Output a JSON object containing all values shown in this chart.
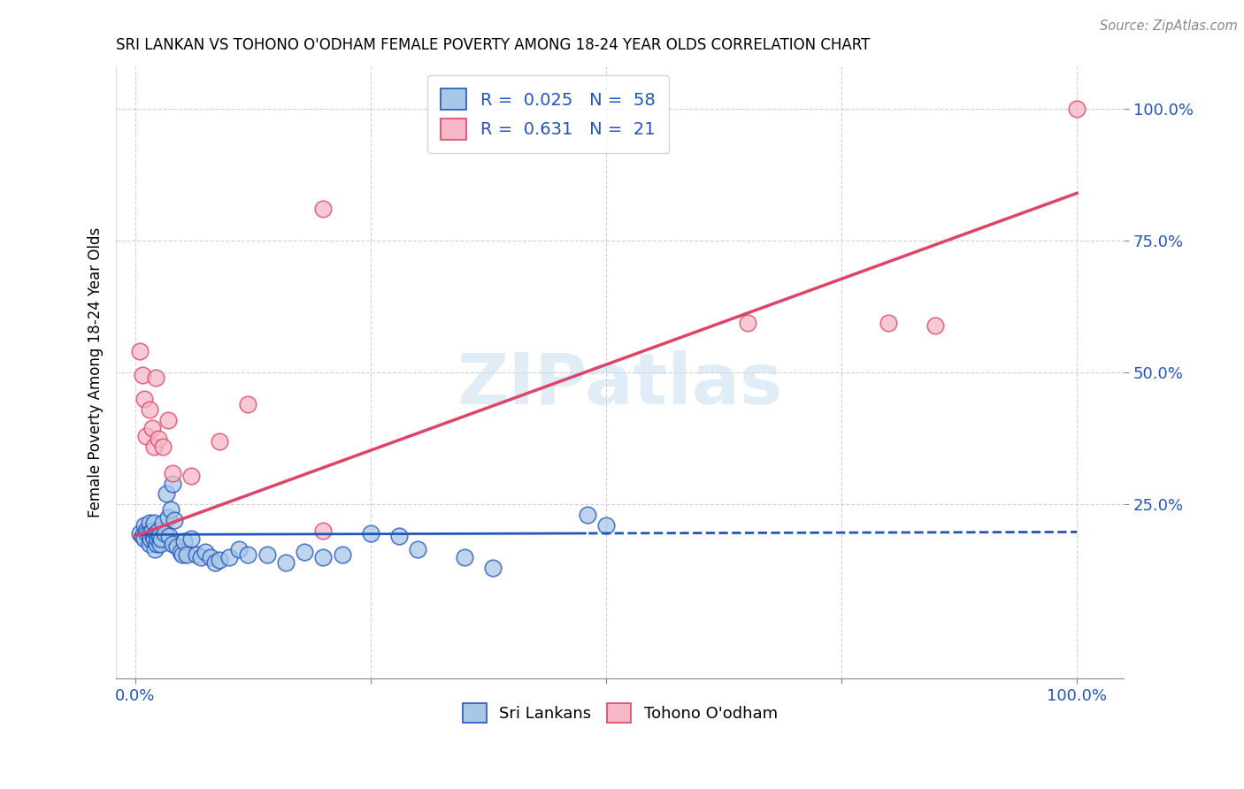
{
  "title": "SRI LANKAN VS TOHONO O'ODHAM FEMALE POVERTY AMONG 18-24 YEAR OLDS CORRELATION CHART",
  "source": "Source: ZipAtlas.com",
  "ylabel": "Female Poverty Among 18-24 Year Olds",
  "xlim": [
    -0.02,
    1.05
  ],
  "ylim": [
    -0.08,
    1.08
  ],
  "xticks": [
    0.0,
    0.25,
    0.5,
    0.75,
    1.0
  ],
  "xticklabels": [
    "0.0%",
    "",
    "",
    "",
    "100.0%"
  ],
  "yticks": [
    0.25,
    0.5,
    0.75,
    1.0
  ],
  "yticklabels": [
    "25.0%",
    "50.0%",
    "75.0%",
    "100.0%"
  ],
  "legend1_label": "R =  0.025   N =  58",
  "legend2_label": "R =  0.631   N =  21",
  "sri_lankan_color": "#a8c8e8",
  "tohono_color": "#f5b8c8",
  "line_blue": "#2255bb",
  "line_pink": "#dd4466",
  "watermark_color": "#c8dff0",
  "sri_lankan_x": [
    0.005,
    0.008,
    0.01,
    0.01,
    0.012,
    0.013,
    0.015,
    0.015,
    0.015,
    0.016,
    0.018,
    0.019,
    0.02,
    0.02,
    0.021,
    0.022,
    0.023,
    0.024,
    0.025,
    0.026,
    0.027,
    0.028,
    0.03,
    0.031,
    0.033,
    0.035,
    0.036,
    0.038,
    0.04,
    0.04,
    0.042,
    0.045,
    0.048,
    0.05,
    0.052,
    0.055,
    0.06,
    0.065,
    0.07,
    0.075,
    0.08,
    0.085,
    0.09,
    0.1,
    0.11,
    0.12,
    0.14,
    0.16,
    0.18,
    0.2,
    0.22,
    0.25,
    0.28,
    0.3,
    0.35,
    0.38,
    0.48,
    0.5
  ],
  "sri_lankan_y": [
    0.195,
    0.19,
    0.21,
    0.185,
    0.2,
    0.195,
    0.215,
    0.195,
    0.175,
    0.185,
    0.2,
    0.19,
    0.215,
    0.185,
    0.165,
    0.195,
    0.175,
    0.185,
    0.2,
    0.19,
    0.175,
    0.185,
    0.215,
    0.195,
    0.27,
    0.225,
    0.19,
    0.24,
    0.29,
    0.175,
    0.22,
    0.17,
    0.16,
    0.155,
    0.18,
    0.155,
    0.185,
    0.155,
    0.15,
    0.16,
    0.15,
    0.14,
    0.145,
    0.15,
    0.165,
    0.155,
    0.155,
    0.14,
    0.16,
    0.15,
    0.155,
    0.195,
    0.19,
    0.165,
    0.15,
    0.13,
    0.23,
    0.21
  ],
  "tohono_x": [
    0.005,
    0.008,
    0.01,
    0.012,
    0.015,
    0.018,
    0.02,
    0.022,
    0.025,
    0.03,
    0.035,
    0.04,
    0.06,
    0.09,
    0.12,
    0.2,
    0.2,
    0.65,
    0.8,
    0.85,
    1.0
  ],
  "tohono_y": [
    0.54,
    0.495,
    0.45,
    0.38,
    0.43,
    0.395,
    0.36,
    0.49,
    0.375,
    0.36,
    0.41,
    0.31,
    0.305,
    0.37,
    0.44,
    0.2,
    0.81,
    0.595,
    0.595,
    0.59,
    1.0
  ],
  "blue_line_solid_end": 0.48,
  "blue_line_y_intercept": 0.193,
  "blue_line_slope": 0.005,
  "pink_line_y_intercept": 0.19,
  "pink_line_slope": 0.65
}
